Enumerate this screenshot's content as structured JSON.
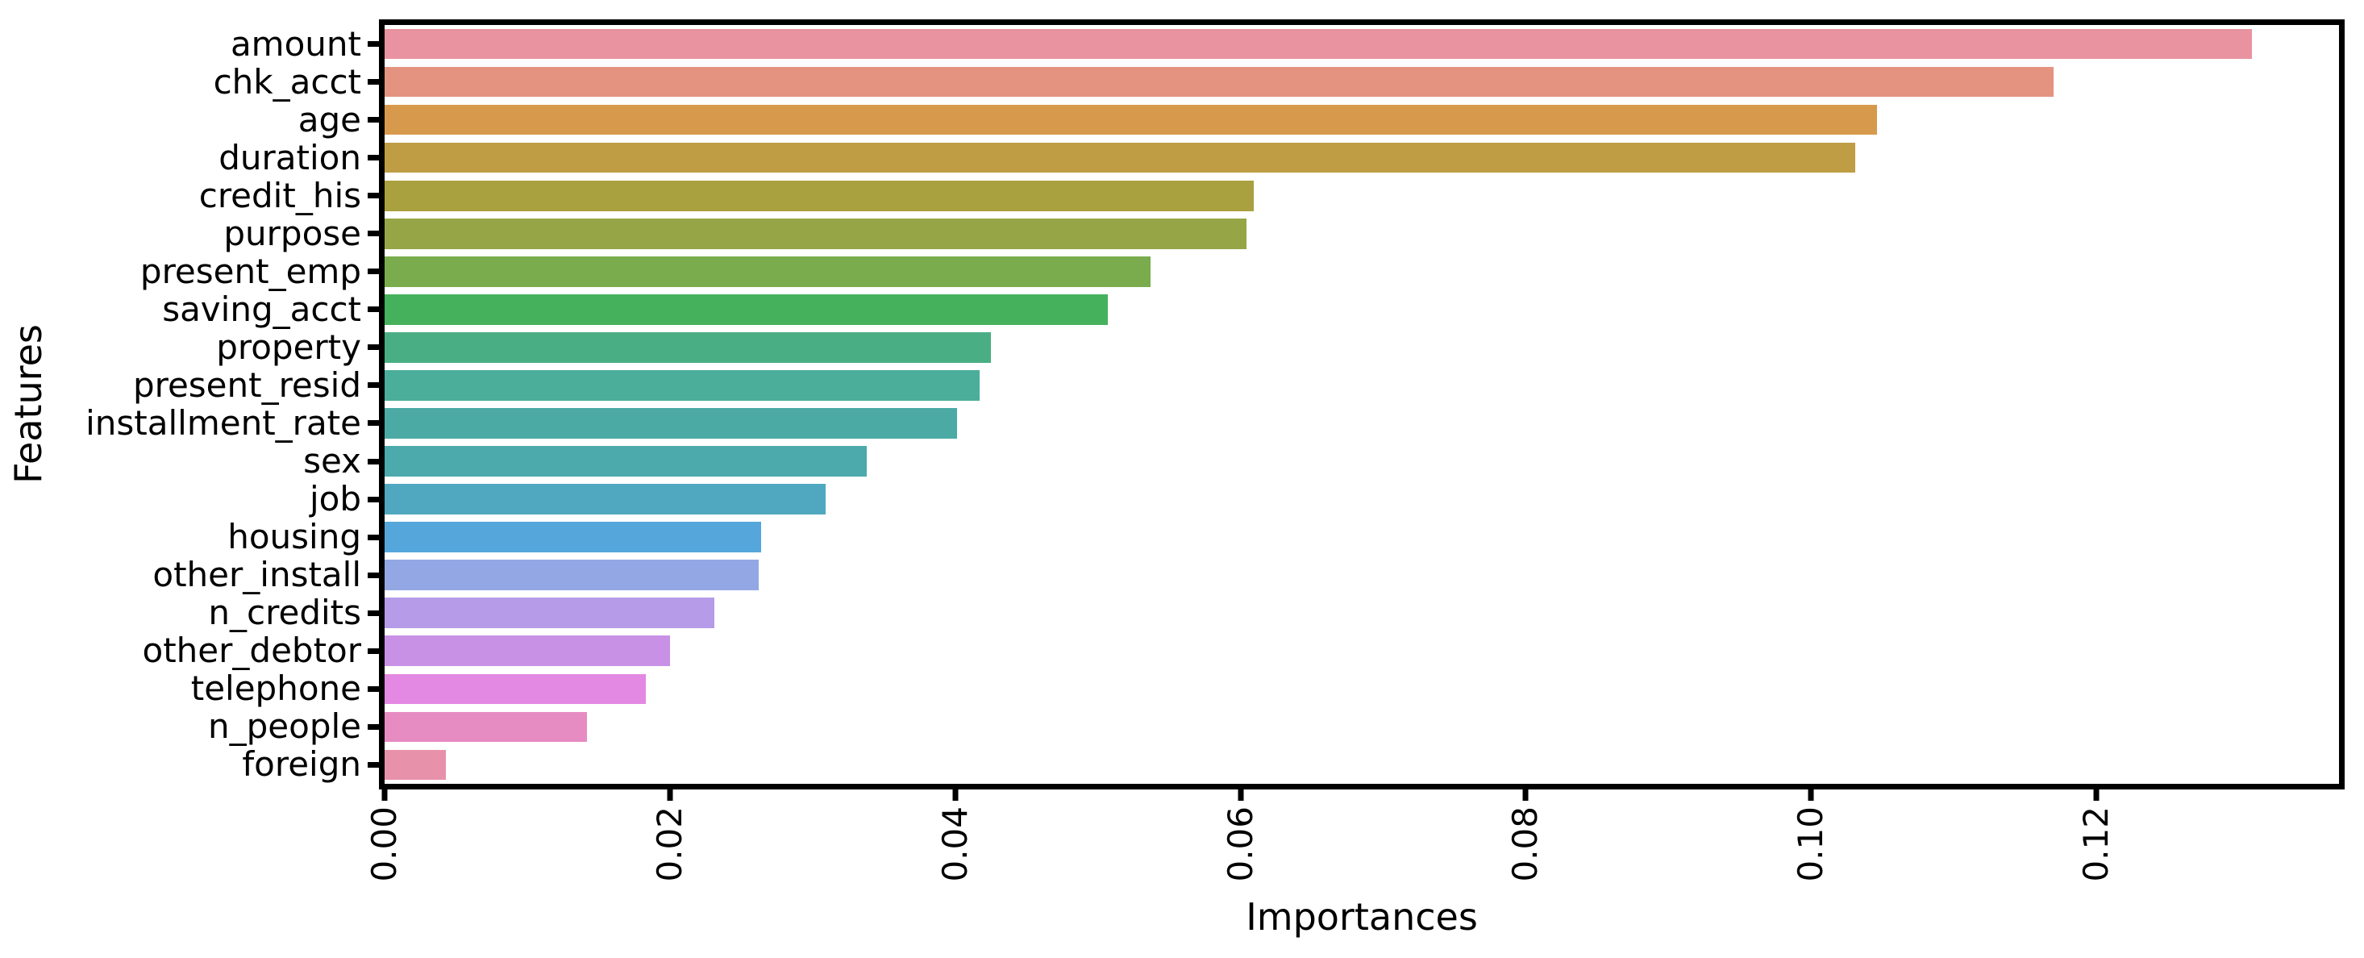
{
  "figure": {
    "xlabel": "Importances",
    "ylabel": "Features",
    "background_color": "#ffffff",
    "spine_color": "#000000",
    "text_color": "#000000"
  },
  "chart_data": {
    "type": "bar",
    "orientation": "horizontal",
    "title": "",
    "xlabel": "Importances",
    "ylabel": "Features",
    "grid": false,
    "legend": null,
    "xlim": [
      0,
      0.137
    ],
    "x_ticks": [
      0.0,
      0.02,
      0.04,
      0.06,
      0.08,
      0.1,
      0.12
    ],
    "x_tick_labels": [
      "0.00",
      "0.02",
      "0.04",
      "0.06",
      "0.08",
      "0.10",
      "0.12"
    ],
    "categories": [
      "amount",
      "chk_acct",
      "age",
      "duration",
      "credit_his",
      "purpose",
      "present_emp",
      "saving_acct",
      "property",
      "present_resid",
      "installment_rate",
      "sex",
      "job",
      "housing",
      "other_install",
      "n_credits",
      "other_debtor",
      "telephone",
      "n_people",
      "foreign"
    ],
    "values": [
      0.1309,
      0.117,
      0.1046,
      0.1031,
      0.0609,
      0.0604,
      0.0537,
      0.0507,
      0.0425,
      0.0417,
      0.0401,
      0.0338,
      0.0309,
      0.0264,
      0.0262,
      0.0231,
      0.02,
      0.0183,
      0.0142,
      0.0043
    ],
    "bar_colors": [
      "#E8939F",
      "#E49380",
      "#D79A4D",
      "#BE9D44",
      "#A9A03F",
      "#96A546",
      "#7AAC4D",
      "#46B15D",
      "#4AAE84",
      "#4BAE9A",
      "#4BABA4",
      "#4CAAAD",
      "#4FA8C0",
      "#55A7DB",
      "#93A7E4",
      "#B69BE9",
      "#C991E5",
      "#E389E3",
      "#E78CC2",
      "#E791AB"
    ]
  }
}
